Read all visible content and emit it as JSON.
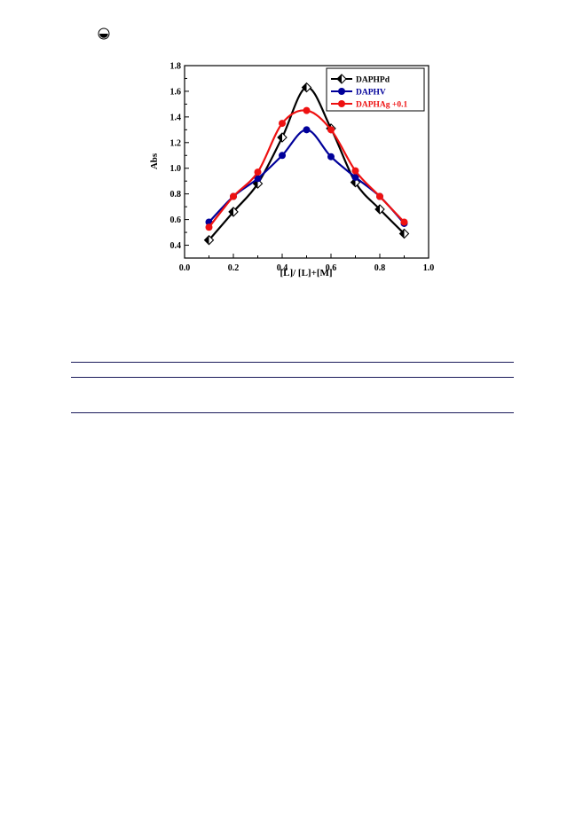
{
  "page_icon": "radio-circle-icon",
  "chart_data": {
    "type": "line",
    "title": "",
    "xlabel": "[L]/ [L]+[M]",
    "ylabel": "Abs",
    "xlim": [
      0.0,
      1.0
    ],
    "ylim": [
      0.3,
      1.8
    ],
    "x_ticks": [
      "0.0",
      "0.2",
      "0.4",
      "0.6",
      "0.8",
      "1.0"
    ],
    "y_ticks": [
      "0.4",
      "0.6",
      "0.8",
      "1.0",
      "1.2",
      "1.4",
      "1.6",
      "1.8"
    ],
    "x_tick_values": [
      0.0,
      0.2,
      0.4,
      0.6,
      0.8,
      1.0
    ],
    "y_tick_values": [
      0.4,
      0.6,
      0.8,
      1.0,
      1.2,
      1.4,
      1.6,
      1.8
    ],
    "legend_position": "top-right",
    "x": [
      0.1,
      0.2,
      0.3,
      0.4,
      0.5,
      0.6,
      0.7,
      0.8,
      0.9
    ],
    "series": [
      {
        "name": "DAPHPd",
        "color": "#000000",
        "marker": "half-diamond",
        "values": [
          0.44,
          0.66,
          0.88,
          1.24,
          1.63,
          1.31,
          0.89,
          0.68,
          0.49
        ]
      },
      {
        "name": "DAPHV",
        "color": "#00009a",
        "marker": "circle",
        "values": [
          0.58,
          0.78,
          0.92,
          1.1,
          1.3,
          1.09,
          0.93,
          0.78,
          0.57
        ]
      },
      {
        "name": "DAPHAg +0.1",
        "color": "#ee1111",
        "marker": "circle",
        "values": [
          0.54,
          0.78,
          0.97,
          1.35,
          1.45,
          1.3,
          0.98,
          0.78,
          0.58
        ]
      }
    ]
  }
}
